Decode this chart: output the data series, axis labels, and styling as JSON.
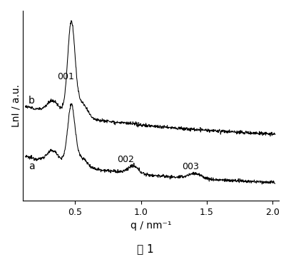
{
  "xlabel": "q / nm⁻¹",
  "ylabel": "LnI / a.u.",
  "caption": "图 1",
  "line_color": "#000000",
  "background_color": "#ffffff",
  "label_a": "a",
  "label_b": "b",
  "annotation_001": "001",
  "annotation_002": "002",
  "annotation_003": "003",
  "xlim": [
    0.1,
    2.05
  ],
  "xticks": [
    0.5,
    1.0,
    1.5,
    2.0
  ],
  "xticklabels": [
    "0.5",
    "1.0",
    "1.5",
    "2.0"
  ],
  "figsize": [
    4.08,
    3.6
  ],
  "dpi": 100
}
